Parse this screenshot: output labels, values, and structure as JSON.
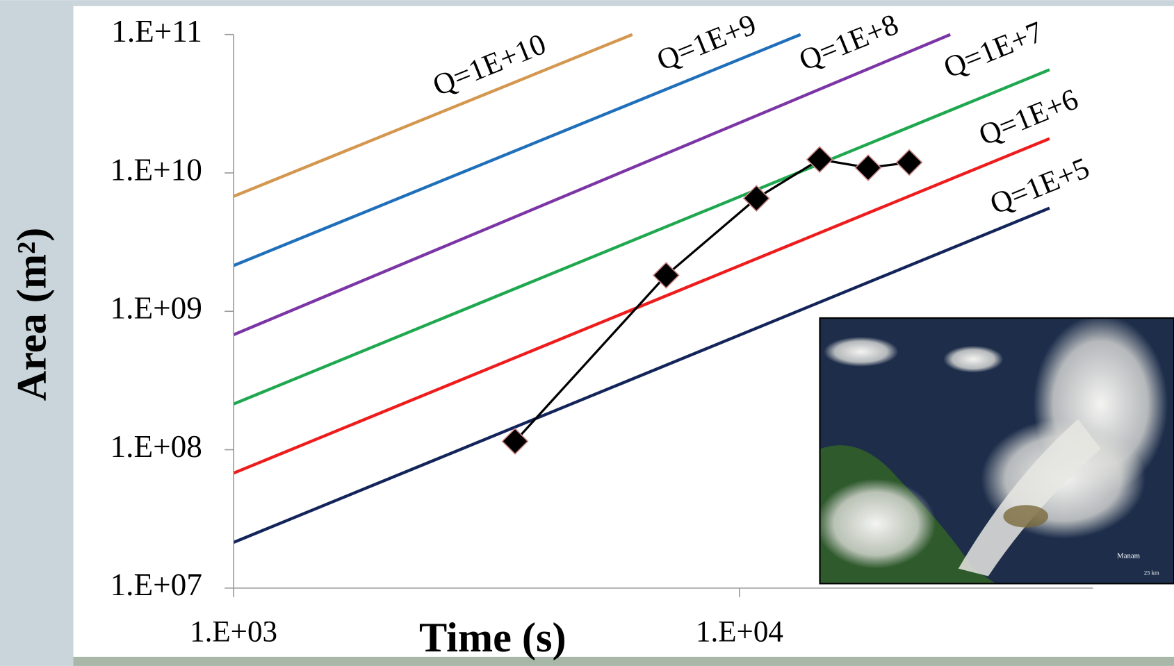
{
  "chart_data": {
    "type": "line",
    "xlabel": "Time (s)",
    "ylabel": "Area (m²)",
    "xscale": "log",
    "yscale": "log",
    "xlim": [
      1000,
      50000
    ],
    "ylim": [
      10000000,
      100000000000
    ],
    "xticks": [
      {
        "value": 1000,
        "label": "1.E+03"
      },
      {
        "value": 10000,
        "label": "1.E+04"
      }
    ],
    "yticks": [
      {
        "value": 10000000,
        "label": "1.E+07"
      },
      {
        "value": 100000000,
        "label": "1.E+08"
      },
      {
        "value": 1000000000,
        "label": "1.E+09"
      },
      {
        "value": 10000000000,
        "label": "1.E+10"
      },
      {
        "value": 100000000000,
        "label": "1.E+11"
      }
    ],
    "series": [
      {
        "name": "Q=1E+10",
        "color": "#d4974f",
        "x": [
          1000,
          6140
        ],
        "values": [
          6770000000,
          100000000000
        ]
      },
      {
        "name": "Q=1E+9",
        "color": "#1f6fba",
        "x": [
          1000,
          13200
        ],
        "values": [
          2140000000,
          100000000000
        ]
      },
      {
        "name": "Q=1E+8",
        "color": "#7b35a5",
        "x": [
          1000,
          26100
        ],
        "values": [
          677000000,
          100000000000
        ]
      },
      {
        "name": "Q=1E+7",
        "color": "#1fa84f",
        "x": [
          1000,
          41000
        ],
        "values": [
          214000000,
          55700000000
        ]
      },
      {
        "name": "Q=1E+6",
        "color": "#ee1c1c",
        "x": [
          1000,
          41000
        ],
        "values": [
          67700000,
          17700000000
        ]
      },
      {
        "name": "Q=1E+5",
        "color": "#13245a",
        "x": [
          1000,
          41000
        ],
        "values": [
          21400000,
          5570000000
        ]
      },
      {
        "color": "#000000",
        "marker": "diamond",
        "x": [
          3600,
          7160,
          10800,
          14400,
          17960,
          21650
        ],
        "values": [
          115000000,
          1820000000,
          6550000000,
          12500000000,
          10900000000,
          11900000000
        ]
      }
    ],
    "inset": {
      "labels": [
        "Manam",
        "25 km"
      ]
    }
  }
}
